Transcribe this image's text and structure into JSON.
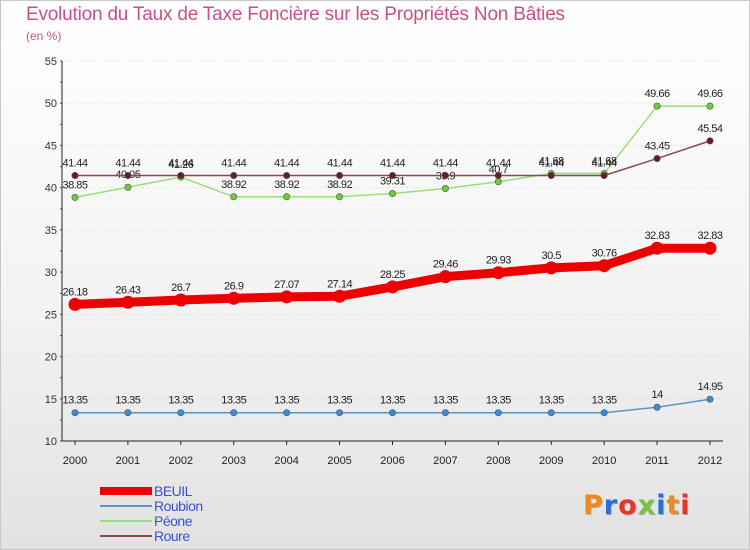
{
  "title": "Evolution du Taux de Taxe Foncière sur les Propriétés Non Bâties",
  "unit_label": "(en %)",
  "brand": "Proxiti",
  "brand_colors": [
    "#f08a1c",
    "#2a6fd6",
    "#e8342a",
    "#7dc142",
    "#2a6fd6",
    "#f08a1c",
    "#e8342a"
  ],
  "chart_data": {
    "type": "line",
    "title": "Evolution du Taux de Taxe Foncière sur les Propriétés Non Bâties",
    "ylabel": "(en %)",
    "xlabel": "",
    "x": [
      "2000",
      "2001",
      "2002",
      "2003",
      "2004",
      "2005",
      "2006",
      "2007",
      "2008",
      "2009",
      "2010",
      "2011",
      "2012"
    ],
    "ylim": [
      10,
      55
    ],
    "yticks": [
      "10",
      "15",
      "20",
      "25",
      "30",
      "35",
      "40",
      "45",
      "50",
      "55"
    ],
    "grid": true,
    "legend_position": "bottom-left",
    "series": [
      {
        "name": "BEUIL",
        "color": "#ee0000",
        "emphasis": true,
        "values": [
          26.18,
          26.43,
          26.7,
          26.9,
          27.07,
          27.14,
          28.25,
          29.46,
          29.93,
          30.5,
          30.76,
          32.83,
          32.83
        ],
        "labels": [
          "26.18",
          "26.43",
          "26.7",
          "26.9",
          "27.07",
          "27.14",
          "28.25",
          "29.46",
          "29.93",
          "30.5",
          "30.76",
          "32.83",
          "32.83"
        ]
      },
      {
        "name": "Roubion",
        "color": "#5b95c8",
        "marker": "#3d8ad6",
        "emphasis": false,
        "values": [
          13.35,
          13.35,
          13.35,
          13.35,
          13.35,
          13.35,
          13.35,
          13.35,
          13.35,
          13.35,
          13.35,
          14,
          14.95
        ],
        "labels": [
          "13.35",
          "13.35",
          "13.35",
          "13.35",
          "13.35",
          "13.35",
          "13.35",
          "13.35",
          "13.35",
          "13.35",
          "13.35",
          "14",
          "14.95"
        ]
      },
      {
        "name": "Péone",
        "color": "#99e07a",
        "marker": "#6dcc3a",
        "emphasis": false,
        "values": [
          38.85,
          40.05,
          41.26,
          38.92,
          38.92,
          38.92,
          39.31,
          39.9,
          40.7,
          41.68,
          41.68,
          49.66,
          49.66
        ],
        "labels": [
          "38.85",
          "40.05",
          "41.26",
          "38.92",
          "38.92",
          "38.92",
          "39.31",
          "39.9",
          "40.7",
          "41.68",
          "41.68",
          "49.66",
          "49.66"
        ]
      },
      {
        "name": "Roure",
        "color": "#8a4a4a",
        "marker": "#6b1a24",
        "emphasis": false,
        "values": [
          41.44,
          41.44,
          41.44,
          41.44,
          41.44,
          41.44,
          41.44,
          41.44,
          41.44,
          41.44,
          41.44,
          43.45,
          45.54
        ],
        "labels": [
          "41.44",
          "41.44",
          "41.44",
          "41.44",
          "41.44",
          "41.44",
          "41.44",
          "41.44",
          "41.44",
          "41.44",
          "41.44",
          "43.45",
          "45.54"
        ]
      }
    ]
  }
}
